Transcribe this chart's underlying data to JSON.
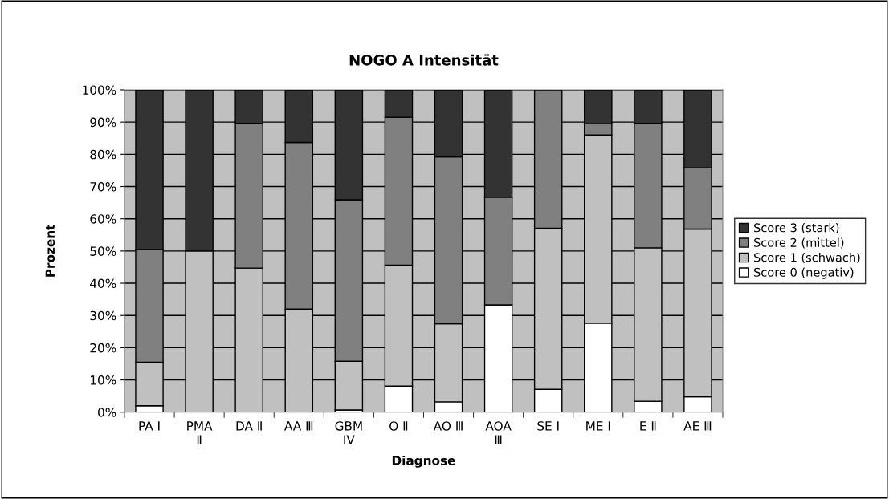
{
  "chart_data": {
    "type": "bar",
    "title": "NOGO A Intensität",
    "xlabel": "Diagnose",
    "ylabel": "Prozent",
    "categories": [
      "PA I",
      "PMA Ⅱ",
      "DA Ⅱ",
      "AA Ⅲ",
      "GBM IV",
      "O Ⅱ",
      "AO Ⅲ",
      "AOA Ⅲ",
      "SE I",
      "ME I",
      "E Ⅱ",
      "AE Ⅲ"
    ],
    "stacked": true,
    "series": [
      {
        "name": "Score 0 (negativ)",
        "color": "#ffffff",
        "values": [
          2,
          0,
          0,
          0,
          0.7,
          8.1,
          3.2,
          33.3,
          7.1,
          27.6,
          3.4,
          4.8
        ]
      },
      {
        "name": "Score 1 (schwach)",
        "color": "#c0c0c0",
        "values": [
          13.5,
          50,
          44.7,
          32,
          15.1,
          37.5,
          24.2,
          0,
          50,
          58.4,
          47.6,
          52
        ]
      },
      {
        "name": "Score 2 (mittel)",
        "color": "#808080",
        "values": [
          35,
          0,
          44.9,
          51.7,
          50.1,
          45.9,
          51.8,
          33.4,
          42.9,
          3.5,
          38.6,
          19
        ]
      },
      {
        "name": "Score 3 (stark)",
        "color": "#333333",
        "values": [
          49.5,
          50,
          10.4,
          16.3,
          34.1,
          8.5,
          20.8,
          33.3,
          0,
          10.5,
          10.4,
          24.2
        ]
      }
    ],
    "ylim": [
      0,
      100
    ],
    "yticks": [
      {
        "value": 0,
        "label": "0%"
      },
      {
        "value": 10,
        "label": "10%"
      },
      {
        "value": 20,
        "label": "20%"
      },
      {
        "value": 30,
        "label": "30%"
      },
      {
        "value": 40,
        "label": "40%"
      },
      {
        "value": 50,
        "label": "50%"
      },
      {
        "value": 60,
        "label": "60%"
      },
      {
        "value": 70,
        "label": "70%"
      },
      {
        "value": 80,
        "label": "80%"
      },
      {
        "value": 90,
        "label": "90%"
      },
      {
        "value": 100,
        "label": "100%"
      }
    ],
    "grid": "y",
    "legend": "right"
  }
}
